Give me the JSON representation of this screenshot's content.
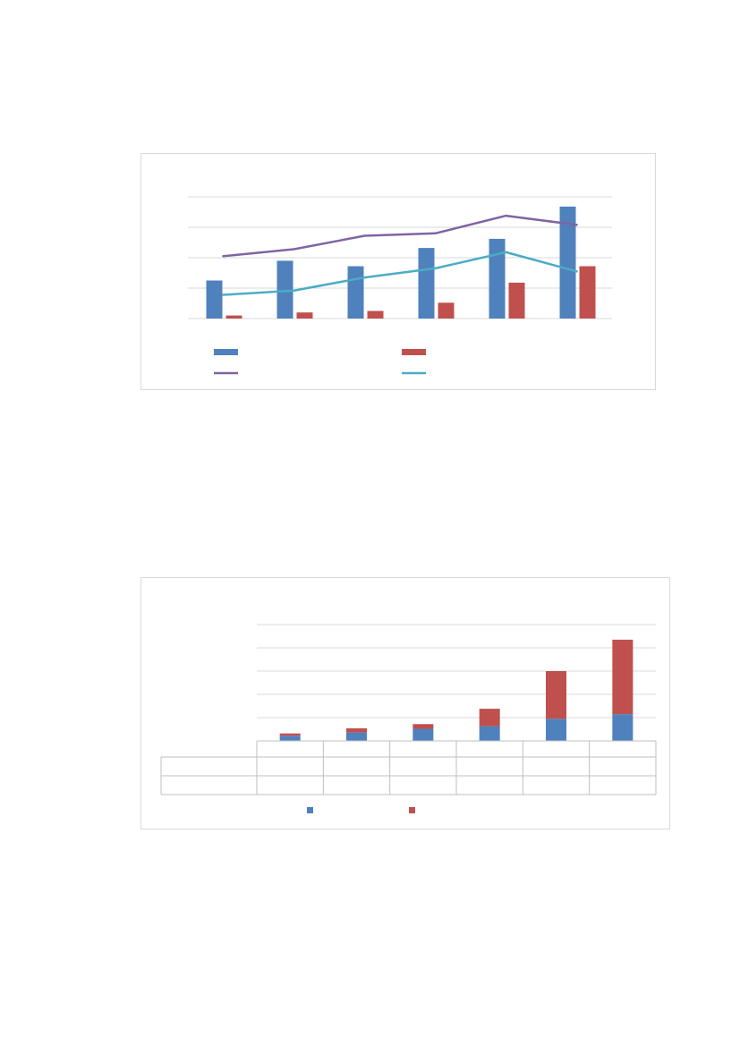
{
  "colors": {
    "blue": "#4f81bd",
    "red": "#c0504d",
    "purple": "#8064a2",
    "teal": "#4bacc6",
    "grid": "#d9d9d9"
  },
  "chart_data": [
    {
      "type": "bar",
      "categories": [
        "",
        "",
        "",
        "",
        "",
        ""
      ],
      "ylim": [
        0,
        4
      ],
      "grid": true,
      "legend": "bottom",
      "series": [
        {
          "kind": "bar",
          "color": "blue",
          "values": [
            1.25,
            1.9,
            1.72,
            2.32,
            2.62,
            3.68
          ]
        },
        {
          "kind": "bar",
          "color": "red",
          "values": [
            0.1,
            0.2,
            0.25,
            0.52,
            1.18,
            1.72
          ]
        },
        {
          "kind": "line",
          "color": "purple",
          "values": [
            2.05,
            2.28,
            2.72,
            2.8,
            3.38,
            3.08
          ]
        },
        {
          "kind": "line",
          "color": "teal",
          "values": [
            0.78,
            0.92,
            1.35,
            1.65,
            2.18,
            1.55
          ]
        }
      ]
    },
    {
      "type": "bar",
      "stacked": true,
      "categories": [
        "",
        "",
        "",
        "",
        "",
        ""
      ],
      "ylim": [
        0,
        5
      ],
      "grid": true,
      "legend": "bottom",
      "data_table": true,
      "series": [
        {
          "color": "blue",
          "values": [
            0.22,
            0.36,
            0.52,
            0.63,
            0.95,
            1.15
          ]
        },
        {
          "color": "red",
          "values": [
            0.1,
            0.18,
            0.2,
            0.75,
            2.05,
            3.2
          ]
        }
      ]
    }
  ]
}
